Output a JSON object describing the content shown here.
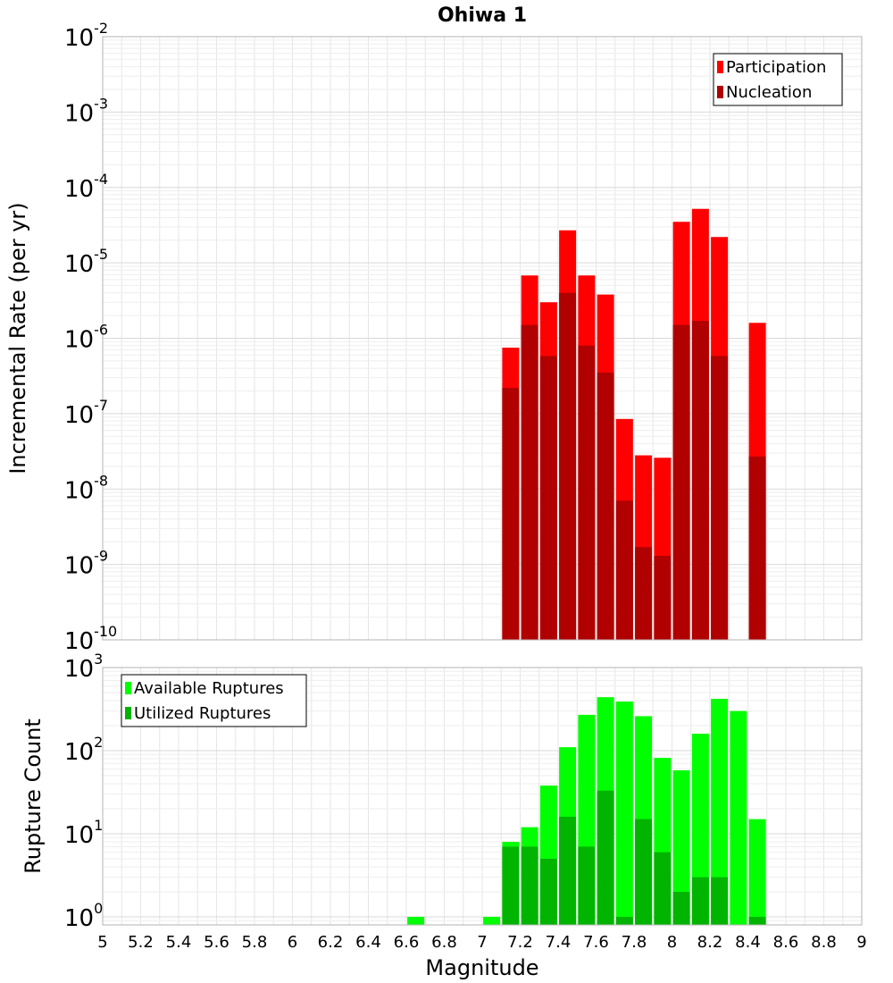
{
  "colors": {
    "participation": "#ff0000",
    "nucleation": "#b00000",
    "available": "#00ff00",
    "utilized": "#00b400",
    "grid": "#e6e6e6",
    "frame": "#b3b3b3"
  },
  "chart_data": [
    {
      "type": "bar",
      "title": "Ohiwa 1",
      "xlabel": "",
      "ylabel": "Incremental Rate (per yr)",
      "log_y": true,
      "xlim": [
        5,
        9
      ],
      "ylim": [
        1e-10,
        0.01
      ],
      "y_ticks": [
        {
          "base": "10",
          "exp": "-10"
        },
        {
          "base": "10",
          "exp": "-9"
        },
        {
          "base": "10",
          "exp": "-8"
        },
        {
          "base": "10",
          "exp": "-7"
        },
        {
          "base": "10",
          "exp": "-6"
        },
        {
          "base": "10",
          "exp": "-5"
        },
        {
          "base": "10",
          "exp": "-4"
        },
        {
          "base": "10",
          "exp": "-3"
        },
        {
          "base": "10",
          "exp": "-2"
        }
      ],
      "legend_position": "top-right",
      "x": [
        7.15,
        7.25,
        7.35,
        7.45,
        7.55,
        7.65,
        7.75,
        7.85,
        7.95,
        8.05,
        8.15,
        8.25,
        8.45
      ],
      "series": [
        {
          "name": "Participation",
          "values": [
            7.5e-07,
            6.8e-06,
            3e-06,
            2.7e-05,
            6.8e-06,
            3.8e-06,
            8.5e-08,
            2.8e-08,
            2.6e-08,
            3.5e-05,
            5.2e-05,
            2.2e-05,
            1.6e-06
          ]
        },
        {
          "name": "Nucleation",
          "values": [
            2.2e-07,
            1.5e-06,
            5.8e-07,
            4e-06,
            8e-07,
            3.5e-07,
            7e-09,
            1.7e-09,
            1.3e-09,
            1.5e-06,
            1.7e-06,
            5.8e-07,
            2.7e-08
          ]
        }
      ]
    },
    {
      "type": "bar",
      "title": "",
      "xlabel": "Magnitude",
      "ylabel": "Rupture Count",
      "log_y": true,
      "xlim": [
        5,
        9
      ],
      "ylim": [
        0.8,
        1000
      ],
      "y_ticks": [
        {
          "base": "10",
          "exp": "0"
        },
        {
          "base": "10",
          "exp": "1"
        },
        {
          "base": "10",
          "exp": "2"
        },
        {
          "base": "10",
          "exp": "3"
        }
      ],
      "x_ticks": [
        "5",
        "5.2",
        "5.4",
        "5.6",
        "5.8",
        "6",
        "6.2",
        "6.4",
        "6.6",
        "6.8",
        "7",
        "7.2",
        "7.4",
        "7.6",
        "7.8",
        "8",
        "8.2",
        "8.4",
        "8.6",
        "8.8",
        "9"
      ],
      "legend_position": "top-left",
      "x": [
        6.65,
        7.05,
        7.15,
        7.25,
        7.35,
        7.45,
        7.55,
        7.65,
        7.75,
        7.85,
        7.95,
        8.05,
        8.15,
        8.25,
        8.35,
        8.45
      ],
      "series": [
        {
          "name": "Available Ruptures",
          "values": [
            1,
            1,
            8,
            12,
            38,
            110,
            270,
            440,
            390,
            260,
            82,
            58,
            160,
            420,
            300,
            15
          ]
        },
        {
          "name": "Utilized Ruptures",
          "values": [
            0,
            0,
            7,
            7,
            5,
            16,
            7,
            33,
            1,
            15,
            6,
            2,
            3,
            3,
            0,
            1
          ]
        }
      ]
    }
  ]
}
